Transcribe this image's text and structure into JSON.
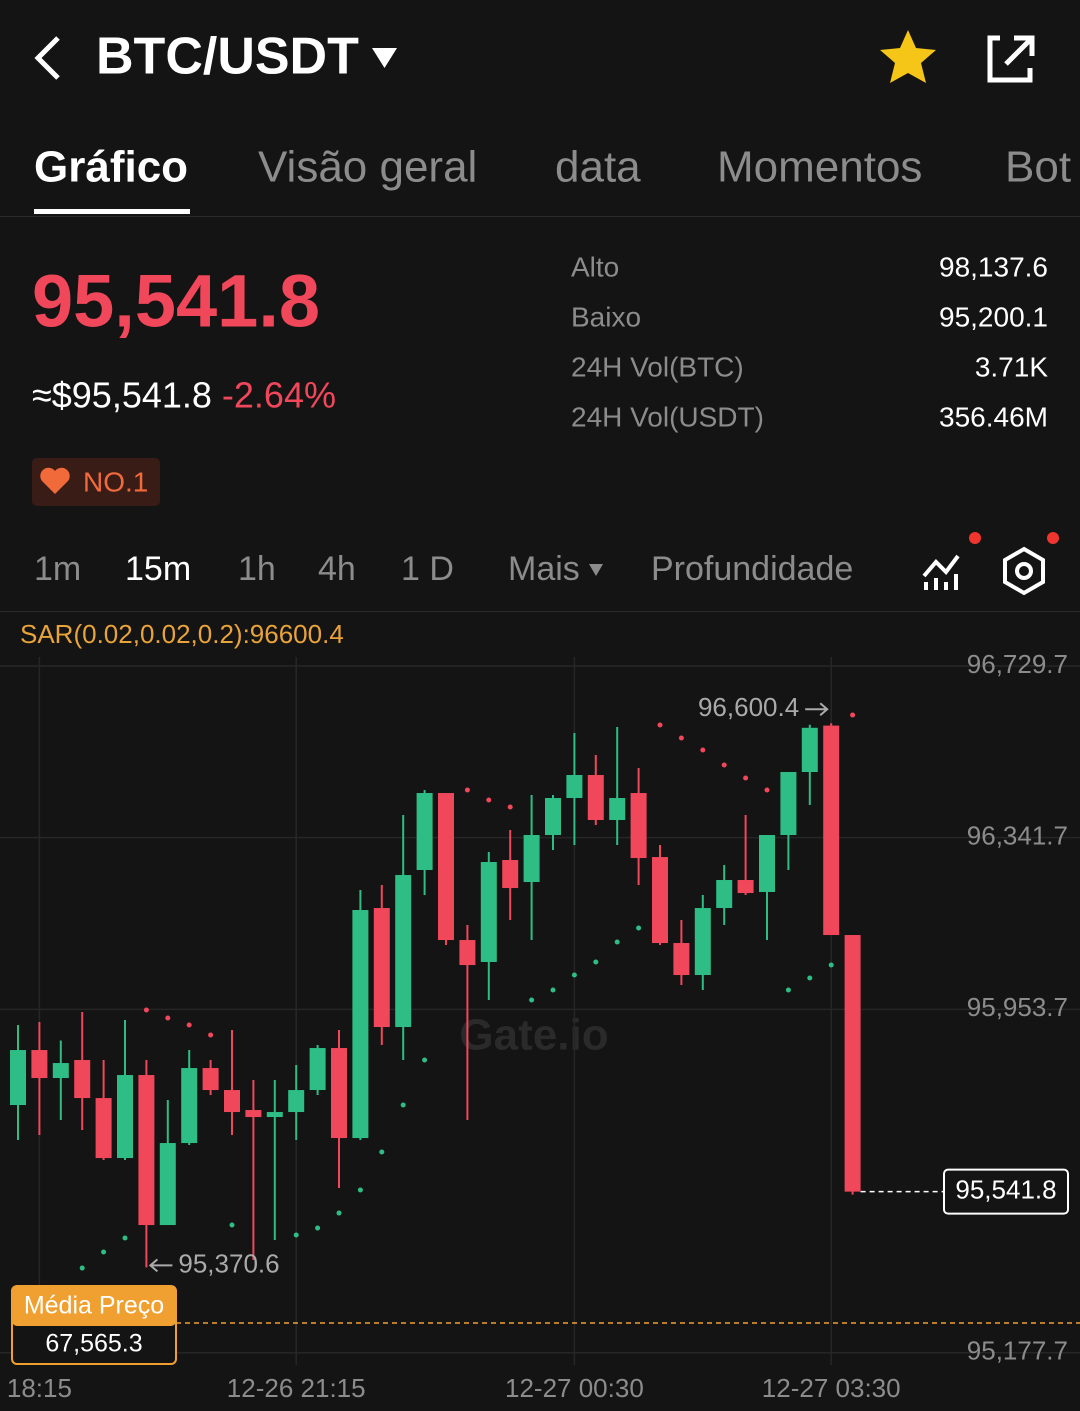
{
  "header": {
    "title": "BTC/USDT"
  },
  "tabs": [
    "Gráfico",
    "Visão geral",
    "data",
    "Momentos",
    "Bot"
  ],
  "ticker": {
    "price": "95,541.8",
    "fiat_price": "≈$95,541.8",
    "change": "-2.64%",
    "badge": "NO.1"
  },
  "stats": [
    {
      "label": "Alto",
      "value": "98,137.6"
    },
    {
      "label": "Baixo",
      "value": "95,200.1"
    },
    {
      "label": "24H Vol(BTC)",
      "value": "3.71K"
    },
    {
      "label": "24H Vol(USDT)",
      "value": "356.46M"
    }
  ],
  "intervals": [
    "1m",
    "15m",
    "1h",
    "4h",
    "1 D",
    "Mais",
    "Profundidade"
  ],
  "chart_data": {
    "type": "candlestick",
    "indicator_label": "SAR(0.02,0.02,0.2):96600.4",
    "watermark": "Gate.io",
    "categories": [
      null,
      "18:15",
      null,
      null,
      null,
      null,
      null,
      null,
      null,
      null,
      null,
      null,
      null,
      "12-26 21:15",
      null,
      null,
      null,
      null,
      null,
      null,
      null,
      null,
      null,
      null,
      null,
      null,
      "12-27 00:30",
      null,
      null,
      null,
      null,
      null,
      null,
      null,
      null,
      null,
      null,
      null,
      "12-27 03:30",
      null
    ],
    "open": [
      95737.5,
      95861.8,
      95798.5,
      95839.2,
      95753.3,
      95617.7,
      95805.3,
      95466.3,
      95651.6,
      95821.1,
      95771.4,
      95726.2,
      95710.4,
      95721.7,
      95771.4,
      95866.3,
      95662.9,
      96182.7,
      95913.8,
      96268.6,
      96442.6,
      96110.4,
      96060.7,
      96291.2,
      96241.5,
      96347.7,
      96431.3,
      96483.3,
      96381.6,
      96442.6,
      96297.9,
      96103.6,
      96031.3,
      96182.7,
      96246.0,
      96218.9,
      96347.7,
      96490.1,
      96595.0,
      96121.7
    ],
    "high": [
      95918.3,
      95925.1,
      95883.4,
      95947.7,
      95839.2,
      95929.6,
      95839.2,
      95748.8,
      95861.8,
      95839.2,
      95907.0,
      95794.0,
      95794.0,
      95827.9,
      95873.1,
      95907.0,
      96223.4,
      96234.7,
      96392.9,
      96449.4,
      96442.6,
      96144.3,
      96309.2,
      96358.9,
      96438.1,
      96438.1,
      96578.2,
      96528.5,
      96591.8,
      96499.1,
      96325.1,
      96155.6,
      96212.1,
      96279.9,
      96392.9,
      96347.7,
      96490.1,
      96597.0,
      96600.4,
      96121.7
    ],
    "low": [
      95658.4,
      95669.7,
      95703.6,
      95681.0,
      95613.2,
      95613.2,
      95370.6,
      95466.3,
      95647.1,
      95760.1,
      95669.7,
      95387.2,
      95432.4,
      95658.4,
      95760.1,
      95549.9,
      95658.4,
      95873.1,
      95839.2,
      96212.1,
      96099.1,
      95703.6,
      95974.8,
      96155.6,
      96110.4,
      96313.8,
      96325.1,
      96370.3,
      96325.1,
      96234.7,
      96099.1,
      96008.7,
      95997.4,
      96144.3,
      96212.1,
      96110.4,
      96268.6,
      96415.5,
      96121.7,
      95535.0
    ],
    "close": [
      95861.8,
      95798.5,
      95832.4,
      95753.3,
      95617.7,
      95805.3,
      95466.3,
      95651.6,
      95821.1,
      95771.4,
      95721.7,
      95710.4,
      95721.7,
      95771.4,
      95866.3,
      95662.9,
      96178.2,
      95913.8,
      96257.3,
      96442.6,
      96110.4,
      96053.9,
      96286.7,
      96227.9,
      96347.7,
      96431.3,
      96483.3,
      96381.6,
      96431.3,
      96295.7,
      96103.6,
      96031.3,
      96182.7,
      96246.0,
      96216.6,
      96347.7,
      96490.1,
      96590.0,
      96121.7,
      95541.8
    ],
    "sar": [
      null,
      null,
      null,
      95369.1,
      95405.3,
      95437.0,
      95952.2,
      95934.1,
      95918.3,
      95895.7,
      95466.3,
      null,
      null,
      95443.7,
      95459.5,
      95493.4,
      95545.4,
      95631.3,
      95737.5,
      95839.2,
      null,
      96449.4,
      96426.8,
      96411.0,
      95974.8,
      95997.4,
      96031.3,
      96060.7,
      96105.9,
      96137.5,
      96596.3,
      96566.9,
      96539.8,
      96505.9,
      96476.5,
      96449.4,
      95997.4,
      96024.5,
      96053.9,
      96618.9
    ],
    "up_color": "#2ebd85",
    "down_color": "#f0475b",
    "ylim": [
      95150,
      96750
    ],
    "yticks": [
      {
        "value": 96729.7,
        "label": "96,729.7"
      },
      {
        "value": 96341.7,
        "label": "96,341.7"
      },
      {
        "value": 95953.7,
        "label": "95,953.7"
      },
      {
        "value": 95177.7,
        "label": "95,177.7"
      }
    ],
    "grid": true,
    "last_price_label": "95,541.8",
    "high_label": "96,600.4",
    "low_label": "95,370.6",
    "avg_price_title": "Média Preço",
    "avg_price_label": "67,565.3"
  }
}
